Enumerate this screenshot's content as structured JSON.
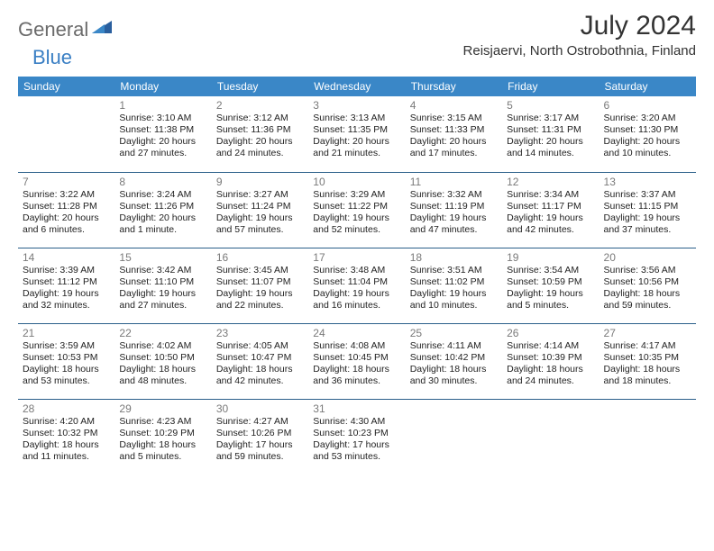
{
  "logo": {
    "part1": "General",
    "part2": "Blue"
  },
  "title": "July 2024",
  "location": "Reisjaervi, North Ostrobothnia, Finland",
  "colors": {
    "header_bg": "#3a87c7",
    "header_text": "#ffffff",
    "border": "#2a5f8a",
    "daynum": "#7a7a7a",
    "logo_gray": "#6b6b6b",
    "logo_blue": "#3a7fc4"
  },
  "weekdays": [
    "Sunday",
    "Monday",
    "Tuesday",
    "Wednesday",
    "Thursday",
    "Friday",
    "Saturday"
  ],
  "weeks": [
    [
      null,
      {
        "n": "1",
        "sr": "Sunrise: 3:10 AM",
        "ss": "Sunset: 11:38 PM",
        "dl": "Daylight: 20 hours and 27 minutes."
      },
      {
        "n": "2",
        "sr": "Sunrise: 3:12 AM",
        "ss": "Sunset: 11:36 PM",
        "dl": "Daylight: 20 hours and 24 minutes."
      },
      {
        "n": "3",
        "sr": "Sunrise: 3:13 AM",
        "ss": "Sunset: 11:35 PM",
        "dl": "Daylight: 20 hours and 21 minutes."
      },
      {
        "n": "4",
        "sr": "Sunrise: 3:15 AM",
        "ss": "Sunset: 11:33 PM",
        "dl": "Daylight: 20 hours and 17 minutes."
      },
      {
        "n": "5",
        "sr": "Sunrise: 3:17 AM",
        "ss": "Sunset: 11:31 PM",
        "dl": "Daylight: 20 hours and 14 minutes."
      },
      {
        "n": "6",
        "sr": "Sunrise: 3:20 AM",
        "ss": "Sunset: 11:30 PM",
        "dl": "Daylight: 20 hours and 10 minutes."
      }
    ],
    [
      {
        "n": "7",
        "sr": "Sunrise: 3:22 AM",
        "ss": "Sunset: 11:28 PM",
        "dl": "Daylight: 20 hours and 6 minutes."
      },
      {
        "n": "8",
        "sr": "Sunrise: 3:24 AM",
        "ss": "Sunset: 11:26 PM",
        "dl": "Daylight: 20 hours and 1 minute."
      },
      {
        "n": "9",
        "sr": "Sunrise: 3:27 AM",
        "ss": "Sunset: 11:24 PM",
        "dl": "Daylight: 19 hours and 57 minutes."
      },
      {
        "n": "10",
        "sr": "Sunrise: 3:29 AM",
        "ss": "Sunset: 11:22 PM",
        "dl": "Daylight: 19 hours and 52 minutes."
      },
      {
        "n": "11",
        "sr": "Sunrise: 3:32 AM",
        "ss": "Sunset: 11:19 PM",
        "dl": "Daylight: 19 hours and 47 minutes."
      },
      {
        "n": "12",
        "sr": "Sunrise: 3:34 AM",
        "ss": "Sunset: 11:17 PM",
        "dl": "Daylight: 19 hours and 42 minutes."
      },
      {
        "n": "13",
        "sr": "Sunrise: 3:37 AM",
        "ss": "Sunset: 11:15 PM",
        "dl": "Daylight: 19 hours and 37 minutes."
      }
    ],
    [
      {
        "n": "14",
        "sr": "Sunrise: 3:39 AM",
        "ss": "Sunset: 11:12 PM",
        "dl": "Daylight: 19 hours and 32 minutes."
      },
      {
        "n": "15",
        "sr": "Sunrise: 3:42 AM",
        "ss": "Sunset: 11:10 PM",
        "dl": "Daylight: 19 hours and 27 minutes."
      },
      {
        "n": "16",
        "sr": "Sunrise: 3:45 AM",
        "ss": "Sunset: 11:07 PM",
        "dl": "Daylight: 19 hours and 22 minutes."
      },
      {
        "n": "17",
        "sr": "Sunrise: 3:48 AM",
        "ss": "Sunset: 11:04 PM",
        "dl": "Daylight: 19 hours and 16 minutes."
      },
      {
        "n": "18",
        "sr": "Sunrise: 3:51 AM",
        "ss": "Sunset: 11:02 PM",
        "dl": "Daylight: 19 hours and 10 minutes."
      },
      {
        "n": "19",
        "sr": "Sunrise: 3:54 AM",
        "ss": "Sunset: 10:59 PM",
        "dl": "Daylight: 19 hours and 5 minutes."
      },
      {
        "n": "20",
        "sr": "Sunrise: 3:56 AM",
        "ss": "Sunset: 10:56 PM",
        "dl": "Daylight: 18 hours and 59 minutes."
      }
    ],
    [
      {
        "n": "21",
        "sr": "Sunrise: 3:59 AM",
        "ss": "Sunset: 10:53 PM",
        "dl": "Daylight: 18 hours and 53 minutes."
      },
      {
        "n": "22",
        "sr": "Sunrise: 4:02 AM",
        "ss": "Sunset: 10:50 PM",
        "dl": "Daylight: 18 hours and 48 minutes."
      },
      {
        "n": "23",
        "sr": "Sunrise: 4:05 AM",
        "ss": "Sunset: 10:47 PM",
        "dl": "Daylight: 18 hours and 42 minutes."
      },
      {
        "n": "24",
        "sr": "Sunrise: 4:08 AM",
        "ss": "Sunset: 10:45 PM",
        "dl": "Daylight: 18 hours and 36 minutes."
      },
      {
        "n": "25",
        "sr": "Sunrise: 4:11 AM",
        "ss": "Sunset: 10:42 PM",
        "dl": "Daylight: 18 hours and 30 minutes."
      },
      {
        "n": "26",
        "sr": "Sunrise: 4:14 AM",
        "ss": "Sunset: 10:39 PM",
        "dl": "Daylight: 18 hours and 24 minutes."
      },
      {
        "n": "27",
        "sr": "Sunrise: 4:17 AM",
        "ss": "Sunset: 10:35 PM",
        "dl": "Daylight: 18 hours and 18 minutes."
      }
    ],
    [
      {
        "n": "28",
        "sr": "Sunrise: 4:20 AM",
        "ss": "Sunset: 10:32 PM",
        "dl": "Daylight: 18 hours and 11 minutes."
      },
      {
        "n": "29",
        "sr": "Sunrise: 4:23 AM",
        "ss": "Sunset: 10:29 PM",
        "dl": "Daylight: 18 hours and 5 minutes."
      },
      {
        "n": "30",
        "sr": "Sunrise: 4:27 AM",
        "ss": "Sunset: 10:26 PM",
        "dl": "Daylight: 17 hours and 59 minutes."
      },
      {
        "n": "31",
        "sr": "Sunrise: 4:30 AM",
        "ss": "Sunset: 10:23 PM",
        "dl": "Daylight: 17 hours and 53 minutes."
      },
      null,
      null,
      null
    ]
  ]
}
